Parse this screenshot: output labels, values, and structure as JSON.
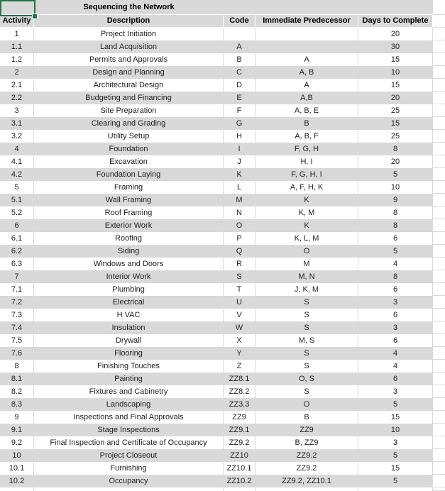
{
  "sheet": {
    "title": "Sequencing the Network",
    "columns": [
      "Activity",
      "Description",
      "Code",
      "Immediate Predecessor",
      "Days to Complete"
    ],
    "rows": [
      {
        "activity": "1",
        "description": "Project Initiation",
        "code": "",
        "predecessor": "",
        "days": "20"
      },
      {
        "activity": "1.1",
        "description": "Land Acquisition",
        "code": "A",
        "predecessor": "",
        "days": "30"
      },
      {
        "activity": "1.2",
        "description": "Permits and Approvals",
        "code": "B",
        "predecessor": "A",
        "days": "15"
      },
      {
        "activity": "2",
        "description": "Design and Planning",
        "code": "C",
        "predecessor": "A, B",
        "days": "10"
      },
      {
        "activity": "2.1",
        "description": "Architectural Design",
        "code": "D",
        "predecessor": "A",
        "days": "15"
      },
      {
        "activity": "2.2",
        "description": "Budgeting and Financing",
        "code": "E",
        "predecessor": "A,B",
        "days": "20"
      },
      {
        "activity": "3",
        "description": "Site Preparation",
        "code": "F",
        "predecessor": "A, B, E",
        "days": "25"
      },
      {
        "activity": "3.1",
        "description": "Clearing and Grading",
        "code": "G",
        "predecessor": "B",
        "days": "15"
      },
      {
        "activity": "3.2",
        "description": "Utility Setup",
        "code": "H",
        "predecessor": "A, B, F",
        "days": "25"
      },
      {
        "activity": "4",
        "description": "Foundation",
        "code": "I",
        "predecessor": "F, G, H",
        "days": "8"
      },
      {
        "activity": "4.1",
        "description": "Excavation",
        "code": "J",
        "predecessor": "H, I",
        "days": "20"
      },
      {
        "activity": "4.2",
        "description": "Foundation Laying",
        "code": "K",
        "predecessor": "F, G, H, I",
        "days": "5"
      },
      {
        "activity": "5",
        "description": "Framing",
        "code": "L",
        "predecessor": "A, F, H, K",
        "days": "10"
      },
      {
        "activity": "5.1",
        "description": "Wall Framing",
        "code": "M",
        "predecessor": "K",
        "days": "9"
      },
      {
        "activity": "5.2",
        "description": "Roof Framing",
        "code": "N",
        "predecessor": "K, M",
        "days": "8"
      },
      {
        "activity": "6",
        "description": "Exterior Work",
        "code": "O",
        "predecessor": "K",
        "days": "8"
      },
      {
        "activity": "6.1",
        "description": "Roofing",
        "code": "P",
        "predecessor": "K, L, M",
        "days": "6"
      },
      {
        "activity": "6.2",
        "description": "Siding",
        "code": "Q",
        "predecessor": "O",
        "days": "5"
      },
      {
        "activity": "6.3",
        "description": "Windows and Doors",
        "code": "R",
        "predecessor": "M",
        "days": "4"
      },
      {
        "activity": "7",
        "description": "Interior Work",
        "code": "S",
        "predecessor": "M, N",
        "days": "8"
      },
      {
        "activity": "7.1",
        "description": "Plumbing",
        "code": "T",
        "predecessor": "J, K, M",
        "days": "6"
      },
      {
        "activity": "7.2",
        "description": "Electrical",
        "code": "U",
        "predecessor": "S",
        "days": "3"
      },
      {
        "activity": "7.3",
        "description": "H VAC",
        "code": "V",
        "predecessor": "S",
        "days": "6"
      },
      {
        "activity": "7.4",
        "description": "Insulation",
        "code": "W",
        "predecessor": "S",
        "days": "3"
      },
      {
        "activity": "7.5",
        "description": "Drywall",
        "code": "X",
        "predecessor": "M, S",
        "days": "6"
      },
      {
        "activity": "7.6",
        "description": "Flooring",
        "code": "Y",
        "predecessor": "S",
        "days": "4"
      },
      {
        "activity": "8",
        "description": "Finishing Touches",
        "code": "Z",
        "predecessor": "S",
        "days": "4"
      },
      {
        "activity": "8.1",
        "description": "Painting",
        "code": "ZZ8.1",
        "predecessor": "O, S",
        "days": "6"
      },
      {
        "activity": "8.2",
        "description": "Fixtures and Cabinetry",
        "code": "ZZ8.2",
        "predecessor": "S",
        "days": "3"
      },
      {
        "activity": "8.3",
        "description": "Landscaping",
        "code": "ZZ3.3",
        "predecessor": "O",
        "days": "5"
      },
      {
        "activity": "9",
        "description": "Inspections and Final Approvals",
        "code": "ZZ9",
        "predecessor": "B",
        "days": "15"
      },
      {
        "activity": "9.1",
        "description": "Stage Inspections",
        "code": "ZZ9.1",
        "predecessor": "ZZ9",
        "days": "10"
      },
      {
        "activity": "9.2",
        "description": "Final Inspection and Certificate of Occupancy",
        "code": "ZZ9.2",
        "predecessor": "B, ZZ9",
        "days": "3"
      },
      {
        "activity": "10",
        "description": "Project Closeout",
        "code": "ZZ10",
        "predecessor": "ZZ9.2",
        "days": "5"
      },
      {
        "activity": "10.1",
        "description": "Furnishing",
        "code": "ZZ10.1",
        "predecessor": "ZZ9.2",
        "days": "15"
      },
      {
        "activity": "10.2",
        "description": "Occupancy",
        "code": "ZZ10.2",
        "predecessor": "ZZ9.2, ZZ10.1",
        "days": "5"
      }
    ]
  },
  "colors": {
    "band_gray": "#d9d9d9",
    "gridline": "#d9d9d9",
    "selection_green": "#217346",
    "text": "#1f1f1f"
  }
}
